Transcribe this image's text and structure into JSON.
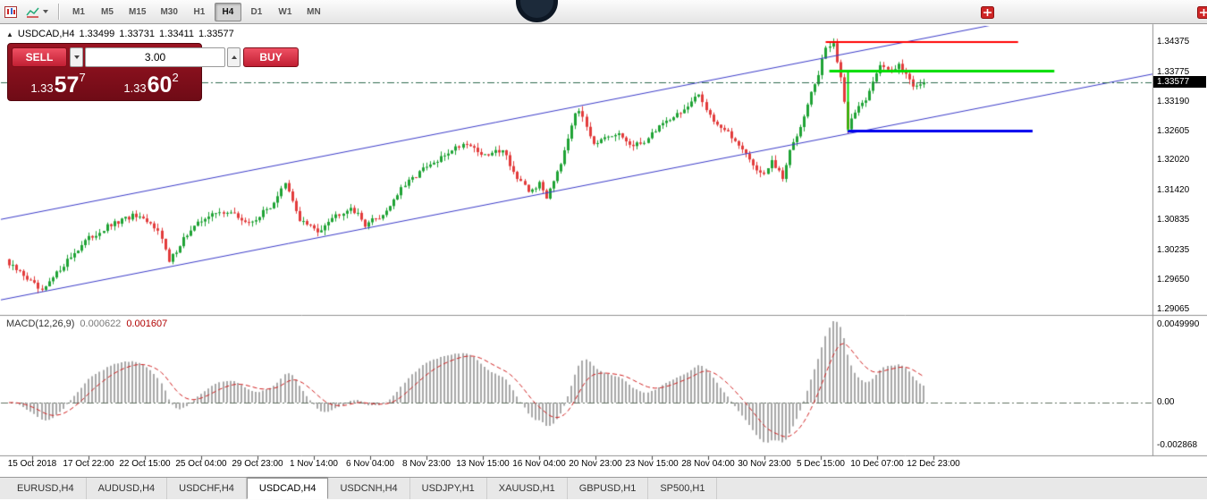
{
  "toolbar": {
    "timeframes": [
      {
        "label": "M1"
      },
      {
        "label": "M5"
      },
      {
        "label": "M15"
      },
      {
        "label": "M30"
      },
      {
        "label": "H1"
      },
      {
        "label": "H4"
      },
      {
        "label": "D1"
      },
      {
        "label": "W1"
      },
      {
        "label": "MN"
      }
    ],
    "active_timeframe": "H4"
  },
  "chart_header": {
    "collapse_icon": "▲",
    "symbol": "USDCAD,H4",
    "open": "1.33499",
    "high": "1.33731",
    "low": "1.33411",
    "close": "1.33577"
  },
  "trade_panel": {
    "sell_label": "SELL",
    "buy_label": "BUY",
    "lot_value": "3.00",
    "sell_price": {
      "prefix": "1.33",
      "pips": "57",
      "pipette": "7"
    },
    "buy_price": {
      "prefix": "1.33",
      "pips": "60",
      "pipette": "2"
    }
  },
  "price_scale": {
    "labels": [
      "1.34375",
      "1.33775",
      "1.33190",
      "1.32605",
      "1.32020",
      "1.31420",
      "1.30835",
      "1.30235",
      "1.29650",
      "1.29065"
    ],
    "current": "1.33577"
  },
  "macd_panel": {
    "title": "MACD(12,26,9)",
    "value1": "0.000622",
    "value2": "0.001607",
    "scale": {
      "top": "0.0049990",
      "zero": "0.00",
      "bottom": "-0.002868"
    }
  },
  "time_axis": {
    "labels": [
      "15 Oct 2018",
      "17 Oct 22:00",
      "22 Oct 15:00",
      "25 Oct 04:00",
      "29 Oct 23:00",
      "1 Nov 14:00",
      "6 Nov 04:00",
      "8 Nov 23:00",
      "13 Nov 15:00",
      "16 Nov 04:00",
      "20 Nov 23:00",
      "23 Nov 15:00",
      "28 Nov 04:00",
      "30 Nov 23:00",
      "5 Dec 15:00",
      "10 Dec 07:00",
      "12 Dec 23:00"
    ]
  },
  "tabs": [
    "EURUSD,H4",
    "AUDUSD,H4",
    "USDCHF,H4",
    "USDCAD,H4",
    "USDCNH,H4",
    "USDJPY,H1",
    "XAUUSD,H1",
    "GBPUSD,H1",
    "SP500,H1"
  ],
  "active_tab": "USDCAD,H4",
  "chart_data": {
    "type": "candlestick",
    "symbol": "USDCAD",
    "timeframe": "H4",
    "current_ohlc": {
      "open": 1.33499,
      "high": 1.33731,
      "low": 1.33411,
      "close": 1.33577
    },
    "bid": 1.33577,
    "ask": 1.33602,
    "ylim": {
      "top": 1.3457,
      "bottom": 1.2902
    },
    "price_ticks": [
      1.34375,
      1.33775,
      1.3319,
      1.32605,
      1.3202,
      1.3142,
      1.30835,
      1.30235,
      1.2965,
      1.29065
    ],
    "candle_count": 253,
    "close_waypoints": [
      [
        0,
        1.2994
      ],
      [
        4,
        1.2975
      ],
      [
        9,
        1.294
      ],
      [
        15,
        1.2996
      ],
      [
        21,
        1.3042
      ],
      [
        27,
        1.307
      ],
      [
        34,
        1.3092
      ],
      [
        41,
        1.3068
      ],
      [
        44,
        1.3
      ],
      [
        48,
        1.3048
      ],
      [
        54,
        1.309
      ],
      [
        60,
        1.3102
      ],
      [
        66,
        1.3076
      ],
      [
        72,
        1.311
      ],
      [
        76,
        1.3155
      ],
      [
        80,
        1.3085
      ],
      [
        85,
        1.306
      ],
      [
        88,
        1.3085
      ],
      [
        94,
        1.311
      ],
      [
        98,
        1.3076
      ],
      [
        103,
        1.3094
      ],
      [
        108,
        1.3145
      ],
      [
        113,
        1.318
      ],
      [
        118,
        1.32
      ],
      [
        122,
        1.3225
      ],
      [
        126,
        1.3238
      ],
      [
        131,
        1.321
      ],
      [
        136,
        1.3226
      ],
      [
        140,
        1.3165
      ],
      [
        143,
        1.314
      ],
      [
        146,
        1.3155
      ],
      [
        148,
        1.313
      ],
      [
        152,
        1.32
      ],
      [
        156,
        1.33
      ],
      [
        158,
        1.329
      ],
      [
        161,
        1.3238
      ],
      [
        165,
        1.3245
      ],
      [
        168,
        1.3254
      ],
      [
        172,
        1.3228
      ],
      [
        176,
        1.3246
      ],
      [
        179,
        1.3272
      ],
      [
        183,
        1.329
      ],
      [
        187,
        1.3308
      ],
      [
        190,
        1.3332
      ],
      [
        194,
        1.3282
      ],
      [
        198,
        1.3255
      ],
      [
        202,
        1.3228
      ],
      [
        205,
        1.3192
      ],
      [
        208,
        1.3172
      ],
      [
        210,
        1.32
      ],
      [
        213,
        1.3166
      ],
      [
        215,
        1.322
      ],
      [
        218,
        1.3272
      ],
      [
        220,
        1.3318
      ],
      [
        223,
        1.3372
      ],
      [
        225,
        1.3428
      ],
      [
        227,
        1.3435
      ],
      [
        229,
        1.3362
      ],
      [
        231,
        1.3268
      ],
      [
        233,
        1.33
      ],
      [
        236,
        1.3326
      ],
      [
        238,
        1.3362
      ],
      [
        240,
        1.3388
      ],
      [
        243,
        1.338
      ],
      [
        245,
        1.3398
      ],
      [
        247,
        1.3372
      ],
      [
        249,
        1.3352
      ],
      [
        252,
        1.33577
      ]
    ],
    "channel": {
      "upper": [
        [
          -3,
          1.3084
        ],
        [
          330,
          1.3555
        ]
      ],
      "lower": [
        [
          -3,
          1.2924
        ],
        [
          330,
          1.3395
        ]
      ]
    },
    "overlay_lines": [
      {
        "name": "resistance-red-line",
        "type": "h",
        "color": "#ff0000",
        "width": 2,
        "price": 1.3437,
        "i1": 225,
        "i2": 278
      },
      {
        "name": "level-green-line",
        "type": "h",
        "color": "#00dd00",
        "width": 3,
        "price": 1.338,
        "i1": 226,
        "i2": 288
      },
      {
        "name": "level-blue-line",
        "type": "h",
        "color": "#0000ee",
        "width": 3,
        "price": 1.3262,
        "i1": 231,
        "i2": 282
      },
      {
        "name": "green-vertical-line",
        "type": "v",
        "color": "#00dd00",
        "width": 2,
        "i": 231,
        "price1": 1.338,
        "price2": 1.3262
      }
    ],
    "macd": {
      "fast": 12,
      "slow": 26,
      "signal": 9,
      "current_macd": 0.000622,
      "current_signal": 0.001607,
      "scale_max": 0.004999,
      "scale_min": -0.002868
    },
    "colors": {
      "up": "#1fa335",
      "down": "#e23b3b",
      "macd_hist": "#a8a8a8",
      "macd_signal": "#d02020",
      "channel": "#3a3ac8",
      "bid_line": "#2f6b4f",
      "resistance": "#ff0000",
      "support_green": "#00dd00",
      "support_blue": "#0000ee"
    }
  }
}
